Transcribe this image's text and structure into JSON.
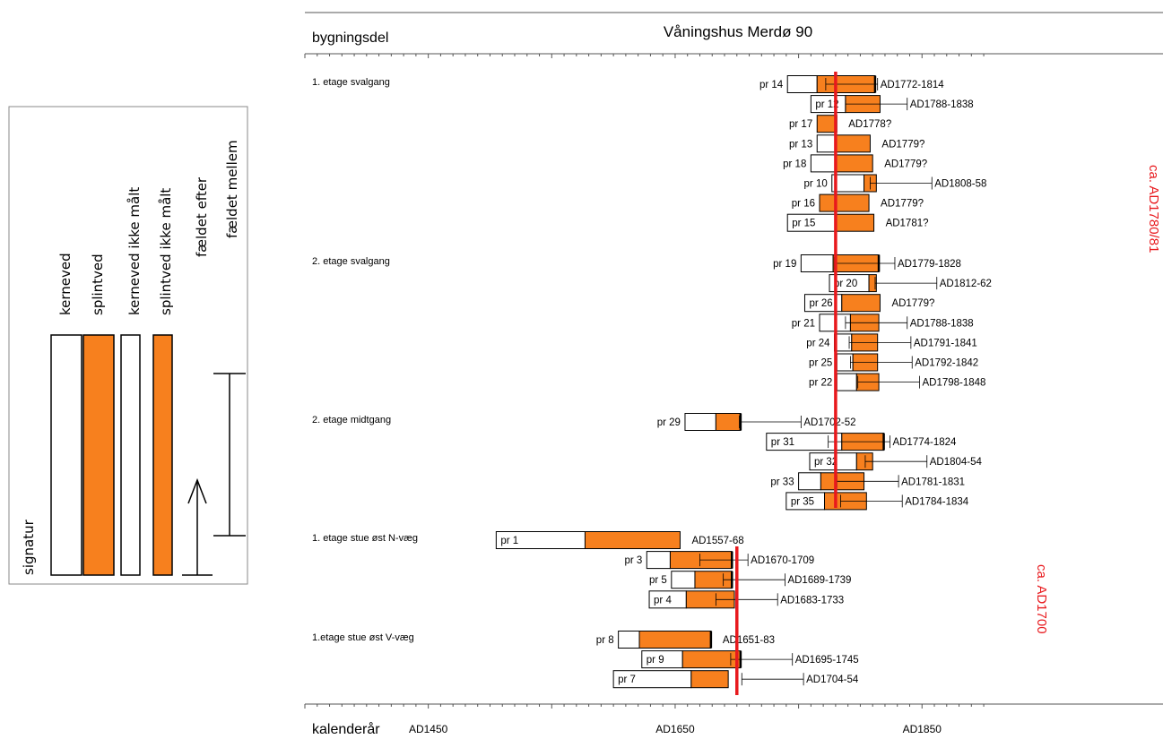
{
  "chart_data": {
    "type": "bar",
    "title": "Våningshus Merdø 90",
    "ylabel": "bygningsdel",
    "xlabel": "kalenderår",
    "xlim": [
      1350,
      1900
    ],
    "x_ticks": [
      {
        "value": 1450,
        "label": "AD1450"
      },
      {
        "value": 1650,
        "label": "AD1650"
      },
      {
        "value": 1850,
        "label": "AD1850"
      }
    ],
    "minor_tick_step": 10,
    "grid": false,
    "groups": [
      {
        "label": "1. etage svalgang",
        "samples": [
          {
            "name": "pr 14",
            "start": 1741,
            "heart_end": 1765,
            "end": 1812,
            "bark": true,
            "dating": "AD1772-1814",
            "range": [
              1772,
              1814
            ]
          },
          {
            "name": "pr 12",
            "start": 1760,
            "heart_end": 1788,
            "end": 1816,
            "bark": false,
            "dating": "AD1788-1838",
            "range": [
              1788,
              1838
            ]
          },
          {
            "name": "pr 17",
            "start": 1765,
            "heart_end": 1765,
            "end": 1781,
            "bark": false,
            "dating": "AD1778?",
            "range": null
          },
          {
            "name": "pr 13",
            "start": 1765,
            "heart_end": 1780,
            "end": 1808,
            "bark": false,
            "dating": "AD1779?",
            "range": null
          },
          {
            "name": "pr 18",
            "start": 1760,
            "heart_end": 1780,
            "end": 1810,
            "bark": false,
            "dating": "AD1779?",
            "range": null
          },
          {
            "name": "pr 10",
            "start": 1777,
            "heart_end": 1803,
            "end": 1813,
            "bark": false,
            "dating": "AD1808-58",
            "range": [
              1808,
              1858
            ]
          },
          {
            "name": "pr 16",
            "start": 1767,
            "heart_end": 1767,
            "end": 1807,
            "bark": false,
            "dating": "AD1779?",
            "range": null
          },
          {
            "name": "pr 15",
            "start": 1741,
            "heart_end": 1780,
            "end": 1811,
            "bark": false,
            "dating": "AD1781?",
            "range": null
          }
        ]
      },
      {
        "label": "2. etage svalgang",
        "samples": [
          {
            "name": "pr 19",
            "start": 1752,
            "heart_end": 1778,
            "end": 1815,
            "bark": true,
            "dating": "AD1779-1828",
            "range": [
              1779,
              1828
            ]
          },
          {
            "name": "pr 20",
            "start": 1775,
            "heart_end": 1807,
            "end": 1813,
            "bark": false,
            "dating": "AD1812-62",
            "range": [
              1812,
              1862
            ]
          },
          {
            "name": "pr 26",
            "start": 1755,
            "heart_end": 1785,
            "end": 1816,
            "bark": false,
            "dating": "AD1779?",
            "range": null
          },
          {
            "name": "pr 21",
            "start": 1767,
            "heart_end": 1792,
            "end": 1815,
            "bark": false,
            "dating": "AD1788-1838",
            "range": [
              1788,
              1838
            ]
          },
          {
            "name": "pr 24",
            "start": 1779,
            "heart_end": 1793,
            "end": 1814,
            "bark": false,
            "dating": "AD1791-1841",
            "range": [
              1791,
              1841
            ]
          },
          {
            "name": "pr 25",
            "start": 1781,
            "heart_end": 1794,
            "end": 1814,
            "bark": false,
            "dating": "AD1792-1842",
            "range": [
              1792,
              1842
            ]
          },
          {
            "name": "pr 22",
            "start": 1781,
            "heart_end": 1797,
            "end": 1815,
            "bark": false,
            "dating": "AD1798-1848",
            "range": [
              1798,
              1848
            ]
          }
        ]
      },
      {
        "label": "2. etage midtgang",
        "samples": [
          {
            "name": "pr 29",
            "start": 1658,
            "heart_end": 1683,
            "end": 1703,
            "bark": true,
            "dating": "AD1702-52",
            "range": [
              1702,
              1752
            ]
          },
          {
            "name": "pr 31",
            "start": 1724,
            "heart_end": 1785,
            "end": 1819,
            "bark": true,
            "dating": "AD1774-1824",
            "range": [
              1774,
              1824
            ]
          },
          {
            "name": "pr 32",
            "start": 1759,
            "heart_end": 1797,
            "end": 1810,
            "bark": false,
            "dating": "AD1804-54",
            "range": [
              1804,
              1854
            ]
          },
          {
            "name": "pr 33",
            "start": 1750,
            "heart_end": 1768,
            "end": 1803,
            "bark": false,
            "dating": "AD1781-1831",
            "range": [
              1781,
              1831
            ]
          },
          {
            "name": "pr 35",
            "start": 1740,
            "heart_end": 1771,
            "end": 1805,
            "bark": false,
            "dating": "AD1784-1834",
            "range": [
              1784,
              1834
            ]
          }
        ]
      },
      {
        "label": "1. etage stue øst N-væg",
        "samples": [
          {
            "name": "pr 1",
            "start": 1505,
            "heart_end": 1577,
            "end": 1654,
            "bark": false,
            "dating": "AD1557-68",
            "range": null
          },
          {
            "name": "pr 3",
            "start": 1627,
            "heart_end": 1646,
            "end": 1696,
            "bark": true,
            "dating": "AD1670-1709",
            "range": [
              1670,
              1709
            ]
          },
          {
            "name": "pr 5",
            "start": 1647,
            "heart_end": 1666,
            "end": 1696,
            "bark": true,
            "dating": "AD1689-1739",
            "range": [
              1689,
              1739
            ]
          },
          {
            "name": "pr 4",
            "start": 1629,
            "heart_end": 1659,
            "end": 1698,
            "bark": false,
            "dating": "AD1683-1733",
            "range": [
              1683,
              1733
            ]
          }
        ]
      },
      {
        "label": "1.etage stue øst V-væg",
        "samples": [
          {
            "name": "pr 8",
            "start": 1604,
            "heart_end": 1621,
            "end": 1679,
            "bark": true,
            "dating": "AD1651-83",
            "range": null
          },
          {
            "name": "pr 9",
            "start": 1623,
            "heart_end": 1656,
            "end": 1703,
            "bark": true,
            "dating": "AD1695-1745",
            "range": [
              1695,
              1745
            ]
          },
          {
            "name": "pr 7",
            "start": 1600,
            "heart_end": 1663,
            "end": 1693,
            "bark": false,
            "dating": "AD1704-54",
            "range": [
              1704,
              1754
            ]
          }
        ]
      }
    ],
    "felling_lines": [
      {
        "year": 1780,
        "label": "ca. AD1780/81",
        "color": "#e8191d"
      },
      {
        "year": 1700,
        "label": "ca. AD1700",
        "color": "#e8191d"
      }
    ],
    "colors": {
      "heartwood": "#ffffff",
      "sapwood": "#f7801e",
      "outline": "#000000",
      "felling": "#e8191d"
    },
    "legend": {
      "title": "signatur",
      "placement": "left",
      "entries": [
        "kerneved",
        "splintved",
        "kerneved ikke målt",
        "splintved ikke målt",
        "fældet efter",
        "fældet mellem"
      ]
    }
  }
}
